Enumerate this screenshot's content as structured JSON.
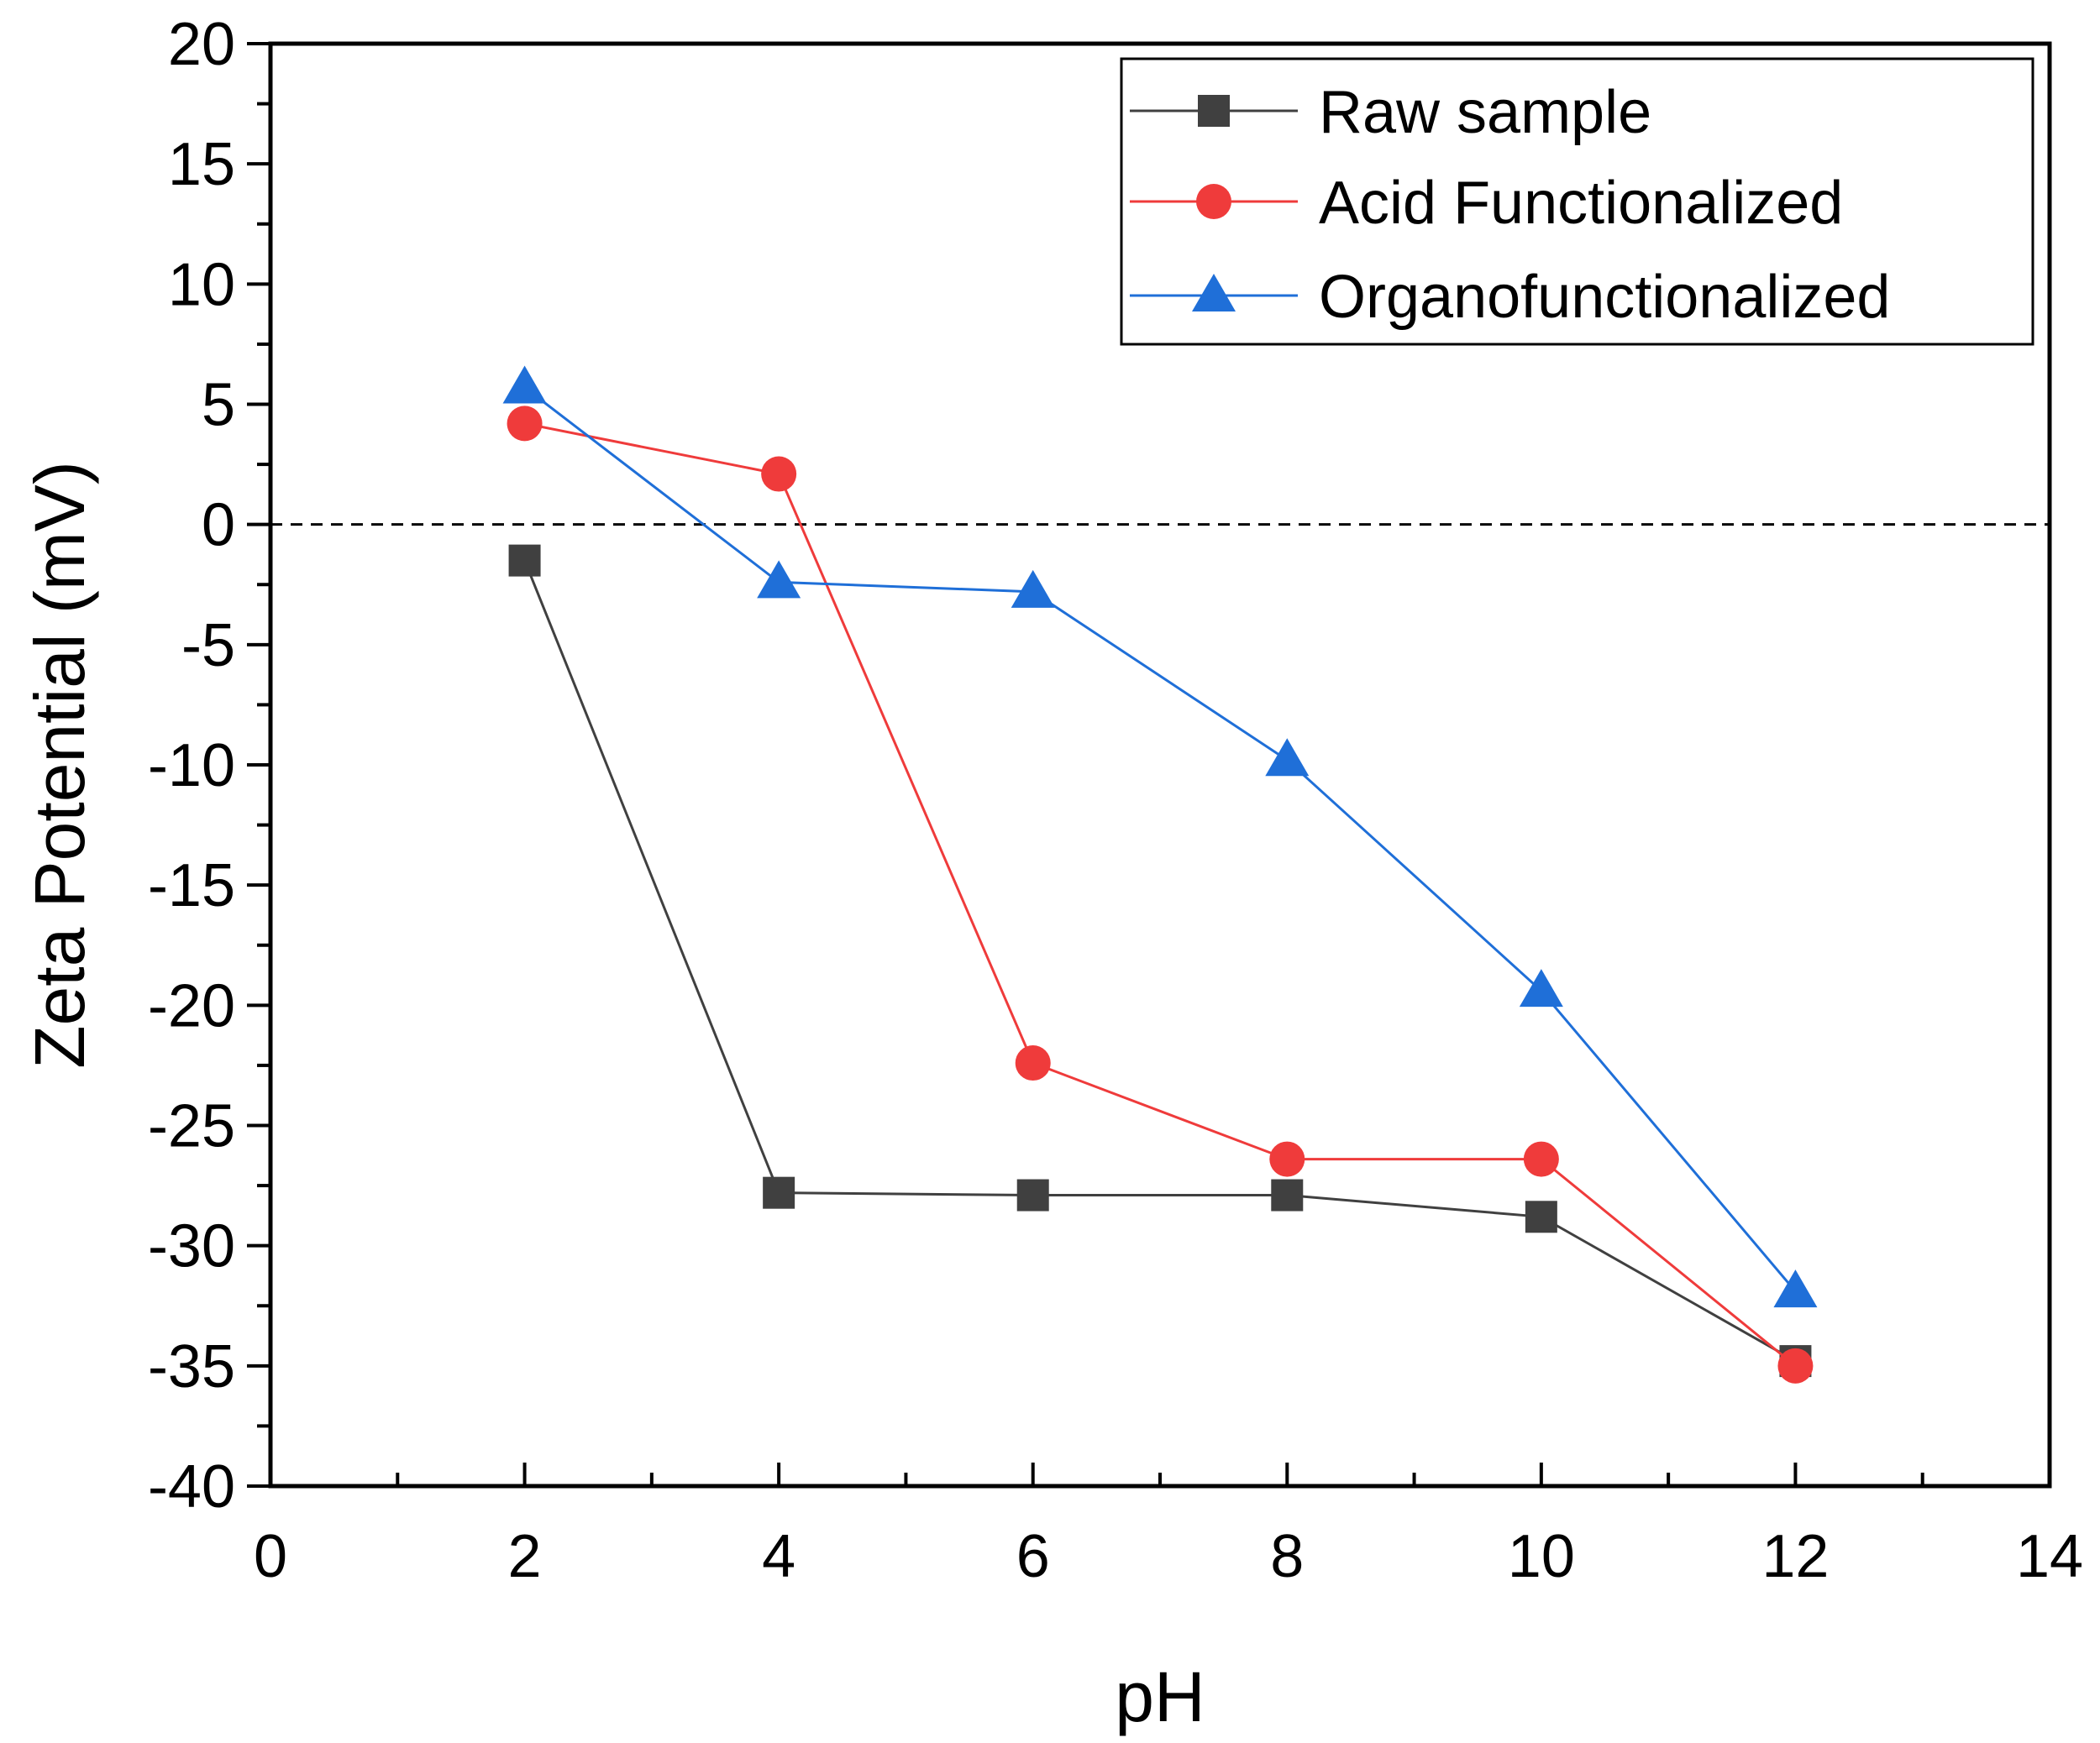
{
  "chart_data": {
    "type": "line",
    "title": "",
    "xlabel": "pH",
    "ylabel": "Zeta Potential (mV)",
    "xlim": [
      0,
      14
    ],
    "ylim": [
      -40,
      20
    ],
    "x_ticks": [
      0,
      2,
      4,
      6,
      8,
      10,
      12,
      14
    ],
    "x_tick_labels": [
      "0",
      "2",
      "4",
      "6",
      "8",
      "10",
      "12",
      "14"
    ],
    "y_ticks": [
      -40,
      -35,
      -30,
      -25,
      -20,
      -15,
      -10,
      -5,
      0,
      5,
      10,
      15,
      20
    ],
    "y_tick_labels": [
      "-40",
      "-35",
      "-30",
      "-25",
      "-20",
      "-15",
      "-10",
      "-5",
      "0",
      "5",
      "10",
      "15",
      "20"
    ],
    "reference_line": {
      "y": 0,
      "style": "dashed"
    },
    "grid": false,
    "legend_position": "top-right",
    "series": [
      {
        "name": "Raw sample",
        "marker": "square",
        "color": "#404040",
        "x": [
          2,
          4,
          6,
          8,
          10,
          12
        ],
        "y": [
          -1.5,
          -27.8,
          -27.9,
          -27.9,
          -28.8,
          -34.8
        ]
      },
      {
        "name": "Acid Functionalized",
        "marker": "circle",
        "color": "#ef3b3b",
        "x": [
          2,
          4,
          6,
          8,
          10,
          12
        ],
        "y": [
          4.2,
          2.1,
          -22.4,
          -26.4,
          -26.4,
          -35.0
        ]
      },
      {
        "name": "Organofunctionalized",
        "marker": "triangle",
        "color": "#1f6fd8",
        "x": [
          2,
          4,
          6,
          8,
          10,
          12
        ],
        "y": [
          5.7,
          -2.4,
          -2.8,
          -9.8,
          -19.4,
          -31.9
        ]
      }
    ]
  }
}
